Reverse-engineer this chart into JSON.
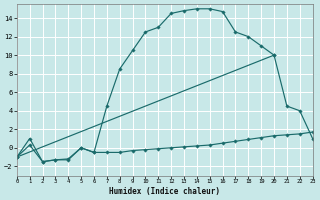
{
  "xlabel": "Humidex (Indice chaleur)",
  "bg_color": "#c8e8e8",
  "grid_color": "#b0d4d4",
  "line_color": "#1a6b6b",
  "xlim": [
    0,
    23
  ],
  "ylim": [
    -3,
    15.5
  ],
  "yticks": [
    -2,
    0,
    2,
    4,
    6,
    8,
    10,
    12,
    14
  ],
  "xticks": [
    0,
    1,
    2,
    3,
    4,
    5,
    6,
    7,
    8,
    9,
    10,
    11,
    12,
    13,
    14,
    15,
    16,
    17,
    18,
    19,
    20,
    21,
    22,
    23
  ],
  "line1_x": [
    0,
    1,
    2,
    3,
    4,
    5,
    6,
    7,
    8,
    9,
    10,
    11,
    12,
    13,
    14,
    15,
    16,
    17,
    18,
    19,
    20,
    21,
    22,
    23
  ],
  "line1_y": [
    -1.0,
    1.0,
    -1.5,
    -1.3,
    -1.2,
    0.0,
    -0.5,
    4.5,
    8.5,
    10.5,
    12.5,
    13.0,
    14.5,
    14.8,
    15.0,
    15.0,
    14.7,
    12.5,
    12.0,
    11.0,
    10.0,
    4.5,
    4.0,
    1.0
  ],
  "line2_x": [
    0,
    1,
    2,
    3,
    4,
    5,
    6,
    7,
    8,
    9,
    10,
    11,
    12,
    13,
    14,
    15,
    16,
    17,
    18,
    19,
    20,
    21,
    22,
    23
  ],
  "line2_y": [
    -1.0,
    0.3,
    -1.5,
    -1.3,
    -1.3,
    0.0,
    -0.5,
    -0.5,
    -0.5,
    -0.3,
    -0.2,
    -0.1,
    0.0,
    0.1,
    0.2,
    0.3,
    0.5,
    0.7,
    0.9,
    1.1,
    1.3,
    1.4,
    1.5,
    1.7
  ],
  "line3_x": [
    0,
    20
  ],
  "line3_y": [
    -1.0,
    10.0
  ]
}
